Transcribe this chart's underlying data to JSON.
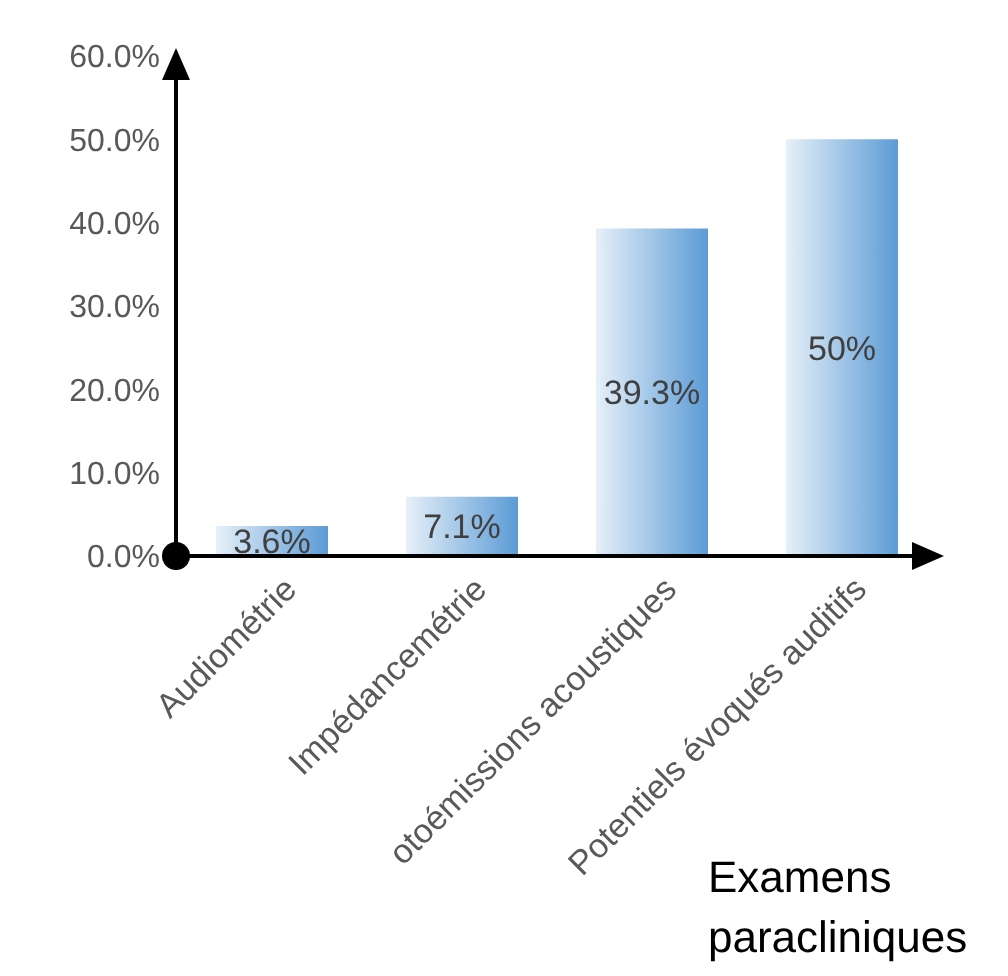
{
  "chart_data": {
    "type": "bar",
    "xlabel": "Examens paracliniques",
    "categories": [
      "Audiométrie",
      "Impédancemétrie",
      "otoémissions acoustiques",
      "Potentiels évoqués auditifs"
    ],
    "values": [
      3.6,
      7.1,
      39.3,
      50
    ],
    "value_labels": [
      "3.6%",
      "7.1%",
      "39.3%",
      "50%"
    ],
    "color": "#5b9bd5",
    "ylim": [
      0,
      60
    ],
    "yticks": [
      {
        "value": 0,
        "label": "0.0%"
      },
      {
        "value": 10,
        "label": "10.0%"
      },
      {
        "value": 20,
        "label": "20.0%"
      },
      {
        "value": 30,
        "label": "30.0%"
      },
      {
        "value": 40,
        "label": "40.0%"
      },
      {
        "value": 50,
        "label": "50.0%"
      },
      {
        "value": 60,
        "label": "60.0%"
      }
    ],
    "grid": false
  }
}
